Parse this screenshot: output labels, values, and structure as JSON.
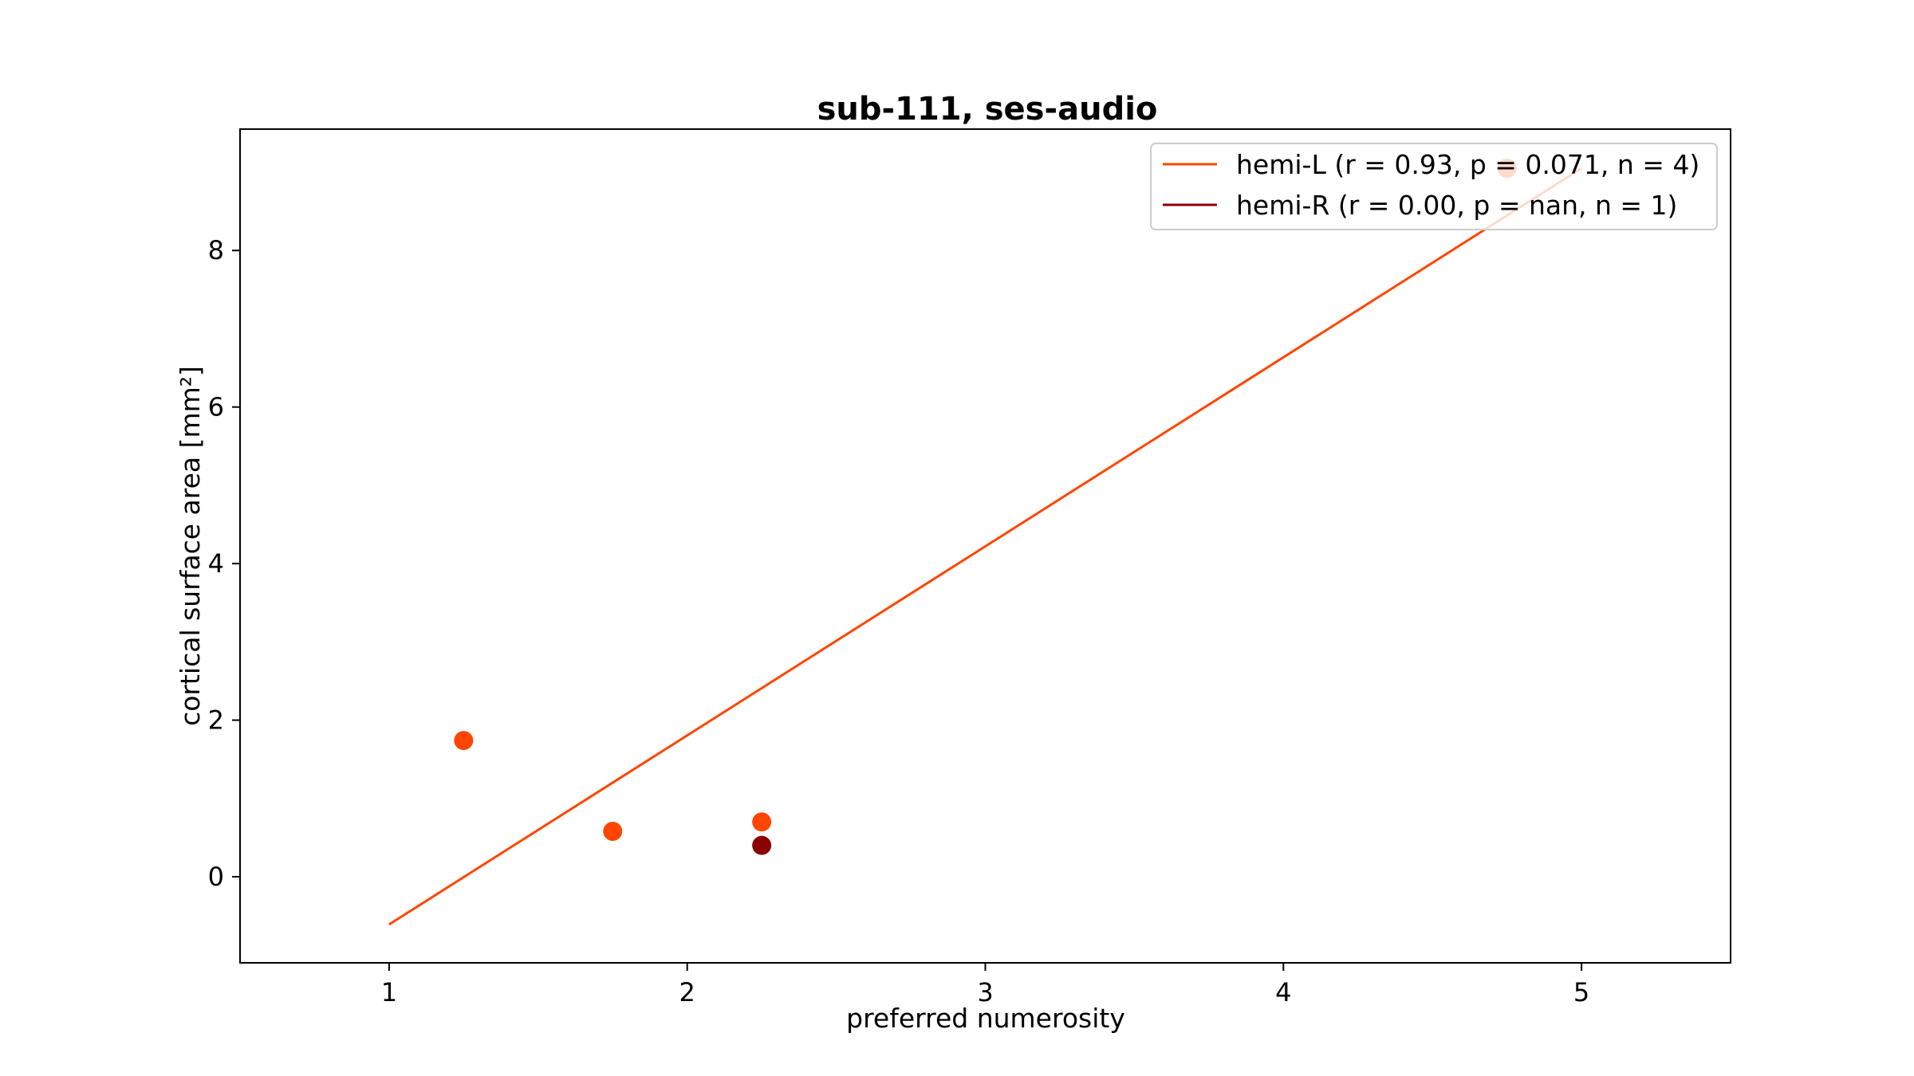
{
  "chart_data": {
    "type": "scatter",
    "title": "sub-111, ses-audio",
    "xlabel": "preferred numerosity",
    "ylabel": "cortical surface area [mm²]",
    "xlim": [
      0.5,
      5.5
    ],
    "ylim": [
      -1.1,
      9.55
    ],
    "xticks": [
      1,
      2,
      3,
      4,
      5
    ],
    "yticks": [
      0,
      2,
      4,
      6,
      8
    ],
    "grid": false,
    "legend_position": "top-right",
    "series": [
      {
        "name": "hemi-L (r = 0.93, p = 0.071, n = 4)",
        "color": "#ff4500",
        "points": [
          {
            "x": 1.25,
            "y": 1.74
          },
          {
            "x": 1.75,
            "y": 0.58
          },
          {
            "x": 2.25,
            "y": 0.7
          },
          {
            "x": 4.75,
            "y": 9.05
          }
        ],
        "fit_line": {
          "x": [
            1,
            5
          ],
          "y": [
            -0.61,
            9.05
          ]
        }
      },
      {
        "name": "hemi-R (r = 0.00, p = nan, n = 1)",
        "color": "#8b0000",
        "points": [
          {
            "x": 2.25,
            "y": 0.4
          }
        ],
        "fit_line": null
      }
    ]
  }
}
